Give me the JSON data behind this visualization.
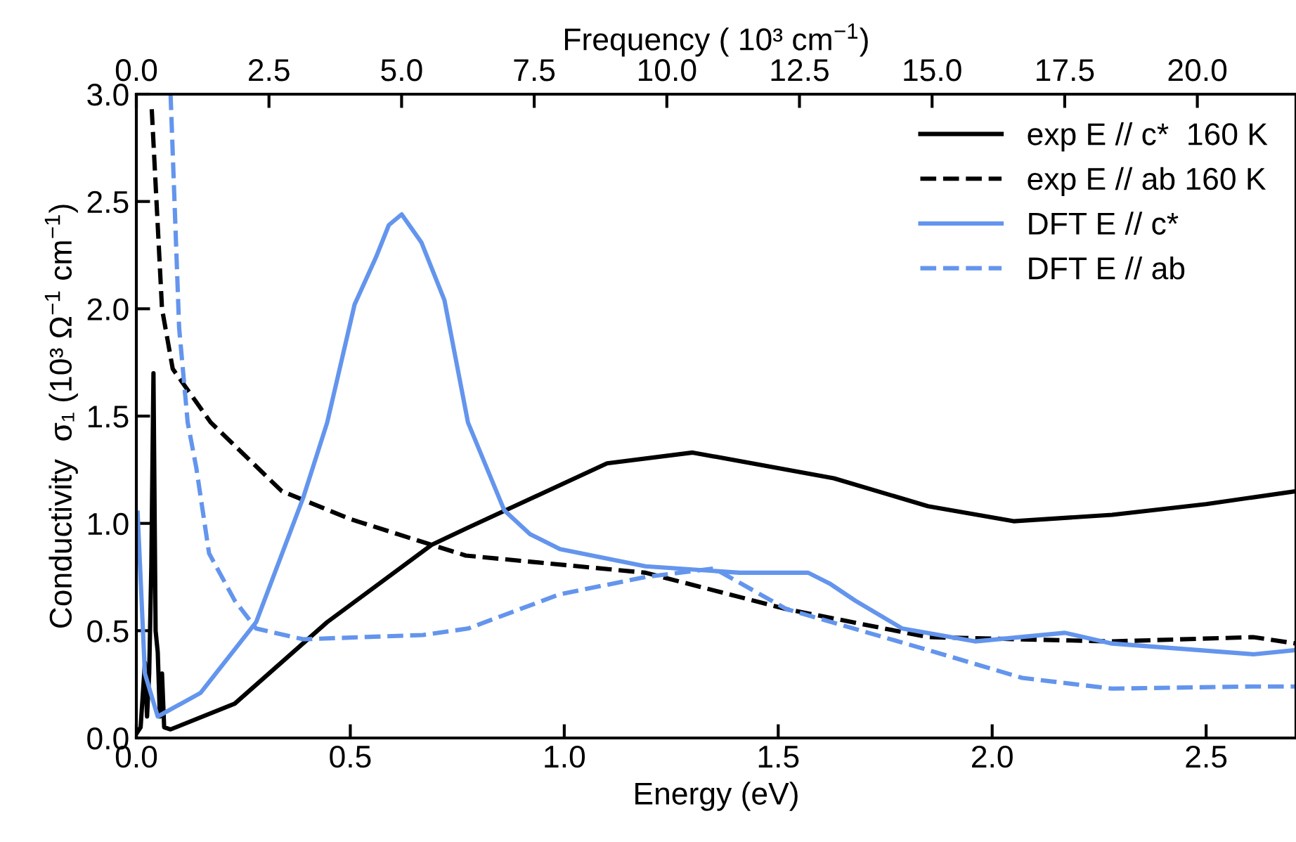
{
  "chart_data": {
    "type": "line",
    "xlabel": "Energy (eV)",
    "ylabel": "Conductivity  σ₁ (10³ Ω$^{−1}$ cm$^{−1}$)",
    "x2label": "Frequency ( 10³ cm$^{−1}$)",
    "xlim": [
      0,
      2.71
    ],
    "ylim": [
      0,
      3.0
    ],
    "xticks": [
      {
        "value": 0,
        "label": "0.0"
      },
      {
        "value": 0.5,
        "label": "0.5"
      },
      {
        "value": 1.0,
        "label": "1.0"
      },
      {
        "value": 1.5,
        "label": "1.5"
      },
      {
        "value": 2.0,
        "label": "2.0"
      },
      {
        "value": 2.5,
        "label": "2.5"
      }
    ],
    "yticks": [
      {
        "value": 0,
        "label": "0.0"
      },
      {
        "value": 0.5,
        "label": "0.5"
      },
      {
        "value": 1.0,
        "label": "1.0"
      },
      {
        "value": 1.5,
        "label": "1.5"
      },
      {
        "value": 2.0,
        "label": "2.0"
      },
      {
        "value": 2.5,
        "label": "2.5"
      },
      {
        "value": 3.0,
        "label": "3.0"
      }
    ],
    "x2lim": [
      0,
      21.86
    ],
    "x2ticks": [
      {
        "value": 0,
        "label": "0.0"
      },
      {
        "value": 2.5,
        "label": "2.5"
      },
      {
        "value": 5,
        "label": "5.0"
      },
      {
        "value": 7.5,
        "label": "7.5"
      },
      {
        "value": 10,
        "label": "10.0"
      },
      {
        "value": 12.5,
        "label": "12.5"
      },
      {
        "value": 15,
        "label": "15.0"
      },
      {
        "value": 17.5,
        "label": "17.5"
      },
      {
        "value": 20,
        "label": "20.0"
      }
    ],
    "grid": false,
    "legend": "top right",
    "marker": "none",
    "series": [
      {
        "name": "exp E // c*  160 K",
        "color": "#000000",
        "line_style": "solid",
        "x": [
          0.0,
          0.01,
          0.02,
          0.025,
          0.03,
          0.035,
          0.04,
          0.045,
          0.05,
          0.055,
          0.06,
          0.065,
          0.08,
          0.23,
          0.446,
          0.69,
          0.775,
          1.1,
          1.3,
          1.63,
          1.85,
          2.05,
          2.28,
          2.5,
          2.71
        ],
        "values": [
          0.02,
          0.05,
          0.35,
          0.1,
          0.3,
          0.8,
          1.7,
          0.5,
          0.4,
          0.1,
          0.3,
          0.05,
          0.04,
          0.16,
          0.54,
          0.9,
          0.98,
          1.28,
          1.33,
          1.21,
          1.08,
          1.01,
          1.04,
          1.09,
          1.15
        ]
      },
      {
        "name": "exp E // ab 160 K",
        "color": "#000000",
        "line_style": "dashed",
        "x": [
          0.036,
          0.06,
          0.085,
          0.174,
          0.34,
          0.5,
          0.69,
          0.77,
          1.19,
          1.52,
          1.85,
          2.28,
          2.61,
          2.71
        ],
        "values": [
          2.93,
          2.0,
          1.72,
          1.47,
          1.15,
          1.02,
          0.9,
          0.85,
          0.77,
          0.6,
          0.47,
          0.45,
          0.47,
          0.44
        ]
      },
      {
        "name": "DFT E // c*",
        "color": "#6495ed",
        "line_style": "solid",
        "x": [
          0.003,
          0.02,
          0.05,
          0.15,
          0.28,
          0.39,
          0.446,
          0.51,
          0.56,
          0.59,
          0.62,
          0.666,
          0.72,
          0.775,
          0.86,
          0.92,
          0.99,
          1.19,
          1.41,
          1.57,
          1.62,
          1.68,
          1.79,
          1.96,
          2.17,
          2.28,
          2.61,
          2.71
        ],
        "values": [
          1.05,
          0.3,
          0.1,
          0.21,
          0.54,
          1.12,
          1.47,
          2.02,
          2.24,
          2.39,
          2.44,
          2.31,
          2.04,
          1.47,
          1.06,
          0.95,
          0.88,
          0.8,
          0.77,
          0.77,
          0.72,
          0.64,
          0.51,
          0.45,
          0.49,
          0.44,
          0.39,
          0.41
        ]
      },
      {
        "name": "DFT E // ab",
        "color": "#6495ed",
        "line_style": "dashed",
        "x": [
          0.08,
          0.1,
          0.12,
          0.14,
          0.17,
          0.23,
          0.28,
          0.39,
          0.67,
          0.775,
          0.99,
          1.19,
          1.35,
          1.52,
          1.85,
          2.07,
          2.28,
          2.61,
          2.71
        ],
        "values": [
          3.0,
          1.91,
          1.47,
          1.26,
          0.86,
          0.64,
          0.51,
          0.46,
          0.48,
          0.51,
          0.67,
          0.75,
          0.79,
          0.6,
          0.41,
          0.28,
          0.23,
          0.24,
          0.24
        ]
      }
    ]
  }
}
